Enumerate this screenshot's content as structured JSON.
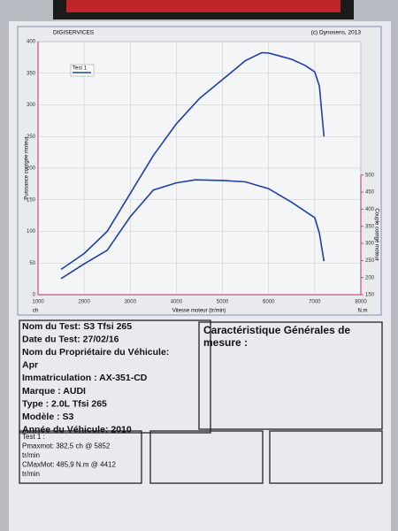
{
  "chart_data": {
    "type": "line",
    "header_left": "DIGISERVICES",
    "header_right": "(c) Dynosens, 2013",
    "xlabel": "Vitesse moteur (tr/min)",
    "ylabel": "Puissance corrigée moteur",
    "y2label": "Couple corrigé moteur",
    "y_unit": "ch",
    "y2_unit": "N.m",
    "xlim": [
      1000,
      8000
    ],
    "xticks": [
      1000,
      2000,
      3000,
      4000,
      5000,
      6000,
      7000,
      8000
    ],
    "ylim": [
      0,
      400
    ],
    "yticks": [
      0,
      50,
      100,
      150,
      200,
      250,
      300,
      350,
      400
    ],
    "y2lim": [
      150,
      890
    ],
    "y2ticks": [
      150,
      200,
      250,
      300,
      350,
      400,
      450,
      500
    ],
    "grid": true,
    "legend": "upper left",
    "series": [
      {
        "name": "Test 1",
        "color": "#1f3ea6",
        "x": [
          1500,
          2000,
          2500,
          3000,
          3500,
          4000,
          4500,
          5000,
          5500,
          5852,
          6000,
          6200,
          6500,
          6800,
          7000,
          7100,
          7200
        ],
        "values": [
          40,
          65,
          100,
          160,
          220,
          270,
          310,
          340,
          370,
          382.5,
          382,
          378,
          372,
          362,
          352,
          330,
          250
        ]
      },
      {
        "color": "#1f3ea6",
        "axis": "y2",
        "x": [
          1500,
          2000,
          2500,
          3000,
          3500,
          4000,
          4412,
          5000,
          5500,
          6000,
          6500,
          7000,
          7100,
          7200
        ],
        "values": [
          197,
          240,
          280,
          378,
          456,
          477,
          485.9,
          484,
          480,
          460,
          420,
          375,
          330,
          248
        ]
      }
    ]
  },
  "identification": [
    "Nom du Test: S3 Tfsi 265",
    "Date du Test: 27/02/16",
    "Nom du Propriétaire du Véhicule:",
    "Apr",
    "Immatriculation  : AX-351-CD",
    "Marque  : AUDI",
    "Type  : 2.0L Tfsi 265",
    "Modèle  : S3",
    "Année du Véhicule: 2010"
  ],
  "mesure_title": [
    "Caractéristique Générales de",
    "mesure :"
  ],
  "results": [
    "Test 1 :",
    "Pmaxmot: 382,5 ch @ 5852",
    "tr/min",
    "CMaxMot: 485,9 N.m @ 4412",
    "tr/min"
  ]
}
